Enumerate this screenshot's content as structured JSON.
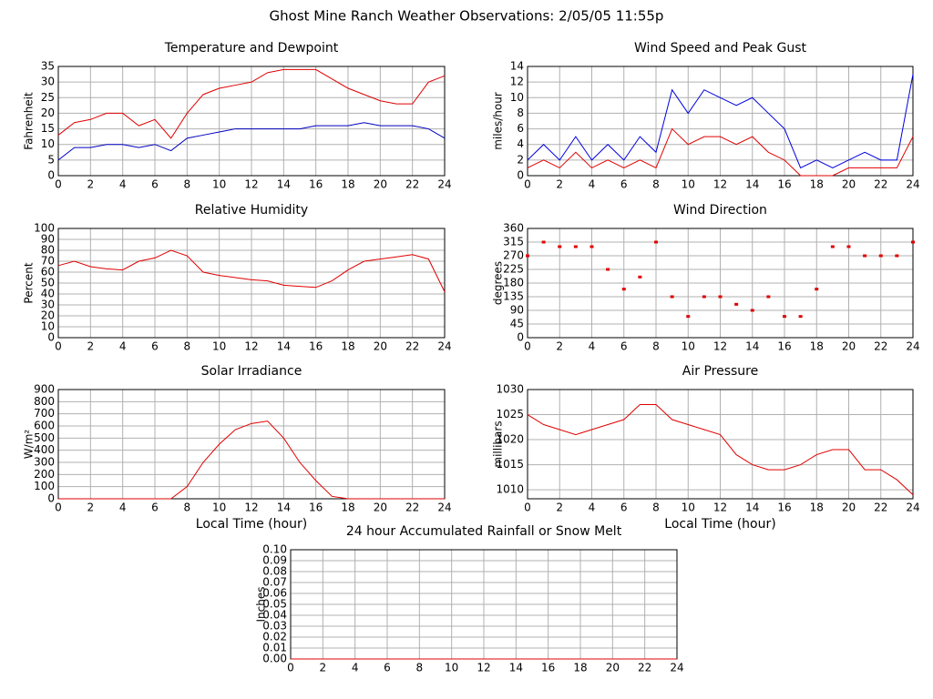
{
  "title": "Ghost Mine Ranch Weather Observations: 2/05/05 11:55p",
  "chart_data": [
    {
      "type": "line",
      "title": "Temperature and Dewpoint",
      "y_label": "Fahrenheit",
      "x": [
        0,
        1,
        2,
        3,
        4,
        5,
        6,
        7,
        8,
        9,
        10,
        11,
        12,
        13,
        14,
        15,
        16,
        17,
        18,
        19,
        20,
        21,
        22,
        23,
        24
      ],
      "series": [
        {
          "color": "#e00000",
          "values": [
            13,
            17,
            18,
            20,
            20,
            16,
            18,
            12,
            20,
            26,
            28,
            29,
            30,
            33,
            34,
            34,
            34,
            31,
            28,
            26,
            24,
            23,
            23,
            30,
            32
          ]
        },
        {
          "color": "#0000c0",
          "values": [
            5,
            9,
            9,
            10,
            10,
            9,
            10,
            8,
            12,
            13,
            14,
            15,
            15,
            15,
            15,
            15,
            16,
            16,
            16,
            17,
            16,
            16,
            16,
            15,
            12
          ]
        }
      ],
      "xlim": [
        0,
        24
      ],
      "xticks": [
        0,
        2,
        4,
        6,
        8,
        10,
        12,
        14,
        16,
        18,
        20,
        22,
        24
      ],
      "ylim": [
        0,
        35
      ],
      "yticks": [
        0,
        5,
        10,
        15,
        20,
        25,
        30,
        35
      ],
      "grid": true
    },
    {
      "type": "line",
      "title": "Wind Speed and Peak Gust",
      "y_label": "miles/hour",
      "x": [
        0,
        1,
        2,
        3,
        4,
        5,
        6,
        7,
        8,
        9,
        10,
        11,
        12,
        13,
        14,
        15,
        16,
        17,
        18,
        19,
        20,
        21,
        22,
        23,
        24
      ],
      "series": [
        {
          "color": "#0000e0",
          "values": [
            2,
            4,
            2,
            5,
            2,
            4,
            2,
            5,
            3,
            11,
            8,
            11,
            10,
            9,
            10,
            8,
            6,
            1,
            2,
            1,
            2,
            3,
            2,
            2,
            13
          ]
        },
        {
          "color": "#e00000",
          "values": [
            1,
            2,
            1,
            3,
            1,
            2,
            1,
            2,
            1,
            6,
            4,
            5,
            5,
            4,
            5,
            3,
            2,
            0,
            0,
            0,
            1,
            1,
            1,
            1,
            5
          ]
        }
      ],
      "xlim": [
        0,
        24
      ],
      "xticks": [
        0,
        2,
        4,
        6,
        8,
        10,
        12,
        14,
        16,
        18,
        20,
        22,
        24
      ],
      "ylim": [
        0,
        14
      ],
      "yticks": [
        0,
        2,
        4,
        6,
        8,
        10,
        12,
        14
      ],
      "grid": true
    },
    {
      "type": "line",
      "title": "Relative Humidity",
      "y_label": "Percent",
      "x": [
        0,
        1,
        2,
        3,
        4,
        5,
        6,
        7,
        8,
        9,
        10,
        11,
        12,
        13,
        14,
        15,
        16,
        17,
        18,
        19,
        20,
        21,
        22,
        23,
        24
      ],
      "series": [
        {
          "color": "#e00000",
          "values": [
            66,
            70,
            65,
            63,
            62,
            70,
            73,
            80,
            75,
            60,
            57,
            55,
            53,
            52,
            48,
            47,
            46,
            52,
            62,
            70,
            72,
            74,
            76,
            72,
            42
          ]
        }
      ],
      "xlim": [
        0,
        24
      ],
      "xticks": [
        0,
        2,
        4,
        6,
        8,
        10,
        12,
        14,
        16,
        18,
        20,
        22,
        24
      ],
      "ylim": [
        0,
        100
      ],
      "yticks": [
        0,
        10,
        20,
        30,
        40,
        50,
        60,
        70,
        80,
        90,
        100
      ],
      "grid": true
    },
    {
      "type": "scatter",
      "title": "Wind Direction",
      "y_label": "degrees",
      "x": [
        0,
        1,
        2,
        3,
        4,
        5,
        6,
        7,
        8,
        9,
        10,
        11,
        12,
        13,
        14,
        15,
        16,
        17,
        18,
        19,
        20,
        21,
        22,
        23,
        24
      ],
      "series": [
        {
          "color": "#e00000",
          "values": [
            270,
            315,
            300,
            300,
            300,
            225,
            160,
            200,
            315,
            135,
            70,
            135,
            135,
            110,
            90,
            135,
            70,
            70,
            160,
            300,
            300,
            270,
            270,
            270,
            315
          ]
        }
      ],
      "xlim": [
        0,
        24
      ],
      "xticks": [
        0,
        2,
        4,
        6,
        8,
        10,
        12,
        14,
        16,
        18,
        20,
        22,
        24
      ],
      "ylim": [
        0,
        360
      ],
      "yticks": [
        0,
        45,
        90,
        135,
        180,
        225,
        270,
        315,
        360
      ],
      "grid": true
    },
    {
      "type": "line",
      "title": "Solar Irradiance",
      "y_label": "W/m²",
      "x_label": "Local Time (hour)",
      "x": [
        0,
        1,
        2,
        3,
        4,
        5,
        6,
        7,
        8,
        9,
        10,
        11,
        12,
        13,
        14,
        15,
        16,
        17,
        18,
        19,
        20,
        21,
        22,
        23,
        24
      ],
      "series": [
        {
          "color": "#e00000",
          "values": [
            0,
            0,
            0,
            0,
            0,
            0,
            0,
            0,
            100,
            300,
            450,
            570,
            620,
            640,
            500,
            300,
            150,
            20,
            0,
            0,
            0,
            0,
            0,
            0,
            0
          ]
        }
      ],
      "xlim": [
        0,
        24
      ],
      "xticks": [
        0,
        2,
        4,
        6,
        8,
        10,
        12,
        14,
        16,
        18,
        20,
        22,
        24
      ],
      "ylim": [
        0,
        900
      ],
      "yticks": [
        0,
        100,
        200,
        300,
        400,
        500,
        600,
        700,
        800,
        900
      ],
      "grid": true
    },
    {
      "type": "line",
      "title": "Air Pressure",
      "y_label": "millibars",
      "x_label": "Local Time (hour)",
      "x": [
        0,
        1,
        2,
        3,
        4,
        5,
        6,
        7,
        8,
        9,
        10,
        11,
        12,
        13,
        14,
        15,
        16,
        17,
        18,
        19,
        20,
        21,
        22,
        23,
        24
      ],
      "series": [
        {
          "color": "#e00000",
          "values": [
            1025,
            1023,
            1022,
            1021,
            1022,
            1023,
            1024,
            1027,
            1027,
            1024,
            1023,
            1022,
            1021,
            1017,
            1015,
            1014,
            1014,
            1015,
            1017,
            1018,
            1018,
            1014,
            1014,
            1012,
            1009
          ]
        }
      ],
      "xlim": [
        0,
        24
      ],
      "xticks": [
        0,
        2,
        4,
        6,
        8,
        10,
        12,
        14,
        16,
        18,
        20,
        22,
        24
      ],
      "ylim": [
        1008.2,
        1030
      ],
      "yticks": [
        1010,
        1015,
        1020,
        1025,
        1030
      ],
      "grid": true
    },
    {
      "type": "line",
      "title": "24 hour Accumulated Rainfall or Snow Melt",
      "y_label": "Inches",
      "x": [
        0,
        1,
        2,
        3,
        4,
        5,
        6,
        7,
        8,
        9,
        10,
        11,
        12,
        13,
        14,
        15,
        16,
        17,
        18,
        19,
        20,
        21,
        22,
        23,
        24
      ],
      "series": [
        {
          "color": "#e00000",
          "values": [
            0,
            0,
            0,
            0,
            0,
            0,
            0,
            0,
            0,
            0,
            0,
            0,
            0,
            0,
            0,
            0,
            0,
            0,
            0,
            0,
            0,
            0,
            0,
            0,
            0
          ]
        }
      ],
      "xlim": [
        0,
        24
      ],
      "xticks": [
        0,
        2,
        4,
        6,
        8,
        10,
        12,
        14,
        16,
        18,
        20,
        22,
        24
      ],
      "ylim": [
        0,
        0.1
      ],
      "yticks": [
        {
          "value": 0,
          "label": "0.00"
        },
        0.01,
        0.02,
        0.03,
        0.04,
        0.05,
        0.06,
        0.07,
        0.08,
        0.09,
        {
          "value": 0.1,
          "label": "0.10"
        }
      ],
      "grid": true
    }
  ]
}
